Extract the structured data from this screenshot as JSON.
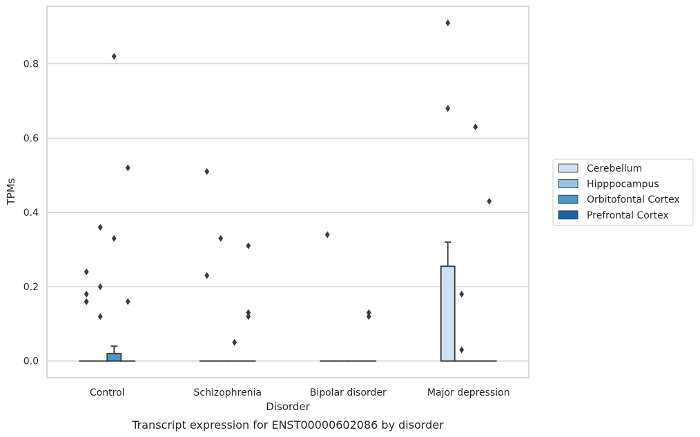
{
  "chart_data": {
    "type": "box",
    "caption": "Transcript expression for ENST00000602086 by disorder",
    "xlabel": "Disorder",
    "ylabel": "TPMs",
    "ylim": [
      -0.045,
      0.955
    ],
    "yticks": [
      0.0,
      0.2,
      0.4,
      0.6,
      0.8
    ],
    "ytick_labels": [
      "0.0",
      "0.2",
      "0.4",
      "0.6",
      "0.8"
    ],
    "grid": "horizontal",
    "legend_position": "right",
    "categories": [
      "Control",
      "Schizophrenia",
      "Bipolar disorder",
      "Major depression"
    ],
    "series": [
      {
        "name": "Cerebellum",
        "color": "#d0e1f2",
        "boxes": [
          {
            "q1": 0,
            "median": 0,
            "q3": 0,
            "whisker_low": 0,
            "whisker_high": 0,
            "outliers": [
              0.24,
              0.18,
              0.16
            ]
          },
          {
            "q1": 0,
            "median": 0,
            "q3": 0,
            "whisker_low": 0,
            "whisker_high": 0,
            "outliers": [
              0.51,
              0.23
            ]
          },
          {
            "q1": 0,
            "median": 0,
            "q3": 0,
            "whisker_low": 0,
            "whisker_high": 0,
            "outliers": [
              0.34
            ]
          },
          {
            "q1": 0,
            "median": 0,
            "q3": 0.255,
            "whisker_low": 0,
            "whisker_high": 0.32,
            "outliers": [
              0.91,
              0.68
            ]
          }
        ]
      },
      {
        "name": "Hipppocampus",
        "color": "#94c4df",
        "boxes": [
          {
            "q1": 0,
            "median": 0,
            "q3": 0,
            "whisker_low": 0,
            "whisker_high": 0,
            "outliers": [
              0.36,
              0.2,
              0.12
            ]
          },
          {
            "q1": 0,
            "median": 0,
            "q3": 0,
            "whisker_low": 0,
            "whisker_high": 0,
            "outliers": [
              0.33
            ]
          },
          {
            "q1": 0,
            "median": 0,
            "q3": 0,
            "whisker_low": 0,
            "whisker_high": 0,
            "outliers": []
          },
          {
            "q1": 0,
            "median": 0,
            "q3": 0,
            "whisker_low": 0,
            "whisker_high": 0,
            "outliers": [
              0.18,
              0.03
            ]
          }
        ]
      },
      {
        "name": "Orbitofontal Cortex",
        "color": "#4a98c9",
        "boxes": [
          {
            "q1": 0,
            "median": 0,
            "q3": 0.02,
            "whisker_low": 0,
            "whisker_high": 0.04,
            "outliers": [
              0.82,
              0.33
            ]
          },
          {
            "q1": 0,
            "median": 0,
            "q3": 0,
            "whisker_low": 0,
            "whisker_high": 0,
            "outliers": [
              0.05
            ]
          },
          {
            "q1": 0,
            "median": 0,
            "q3": 0,
            "whisker_low": 0,
            "whisker_high": 0,
            "outliers": []
          },
          {
            "q1": 0,
            "median": 0,
            "q3": 0,
            "whisker_low": 0,
            "whisker_high": 0,
            "outliers": [
              0.63
            ]
          }
        ]
      },
      {
        "name": "Prefrontal Cortex",
        "color": "#1764ab",
        "boxes": [
          {
            "q1": 0,
            "median": 0,
            "q3": 0,
            "whisker_low": 0,
            "whisker_high": 0,
            "outliers": [
              0.52,
              0.16
            ]
          },
          {
            "q1": 0,
            "median": 0,
            "q3": 0,
            "whisker_low": 0,
            "whisker_high": 0,
            "outliers": [
              0.31,
              0.13,
              0.12
            ]
          },
          {
            "q1": 0,
            "median": 0,
            "q3": 0,
            "whisker_low": 0,
            "whisker_high": 0,
            "outliers": [
              0.13,
              0.12
            ]
          },
          {
            "q1": 0,
            "median": 0,
            "q3": 0,
            "whisker_low": 0,
            "whisker_high": 0,
            "outliers": [
              0.43
            ]
          }
        ]
      }
    ]
  }
}
